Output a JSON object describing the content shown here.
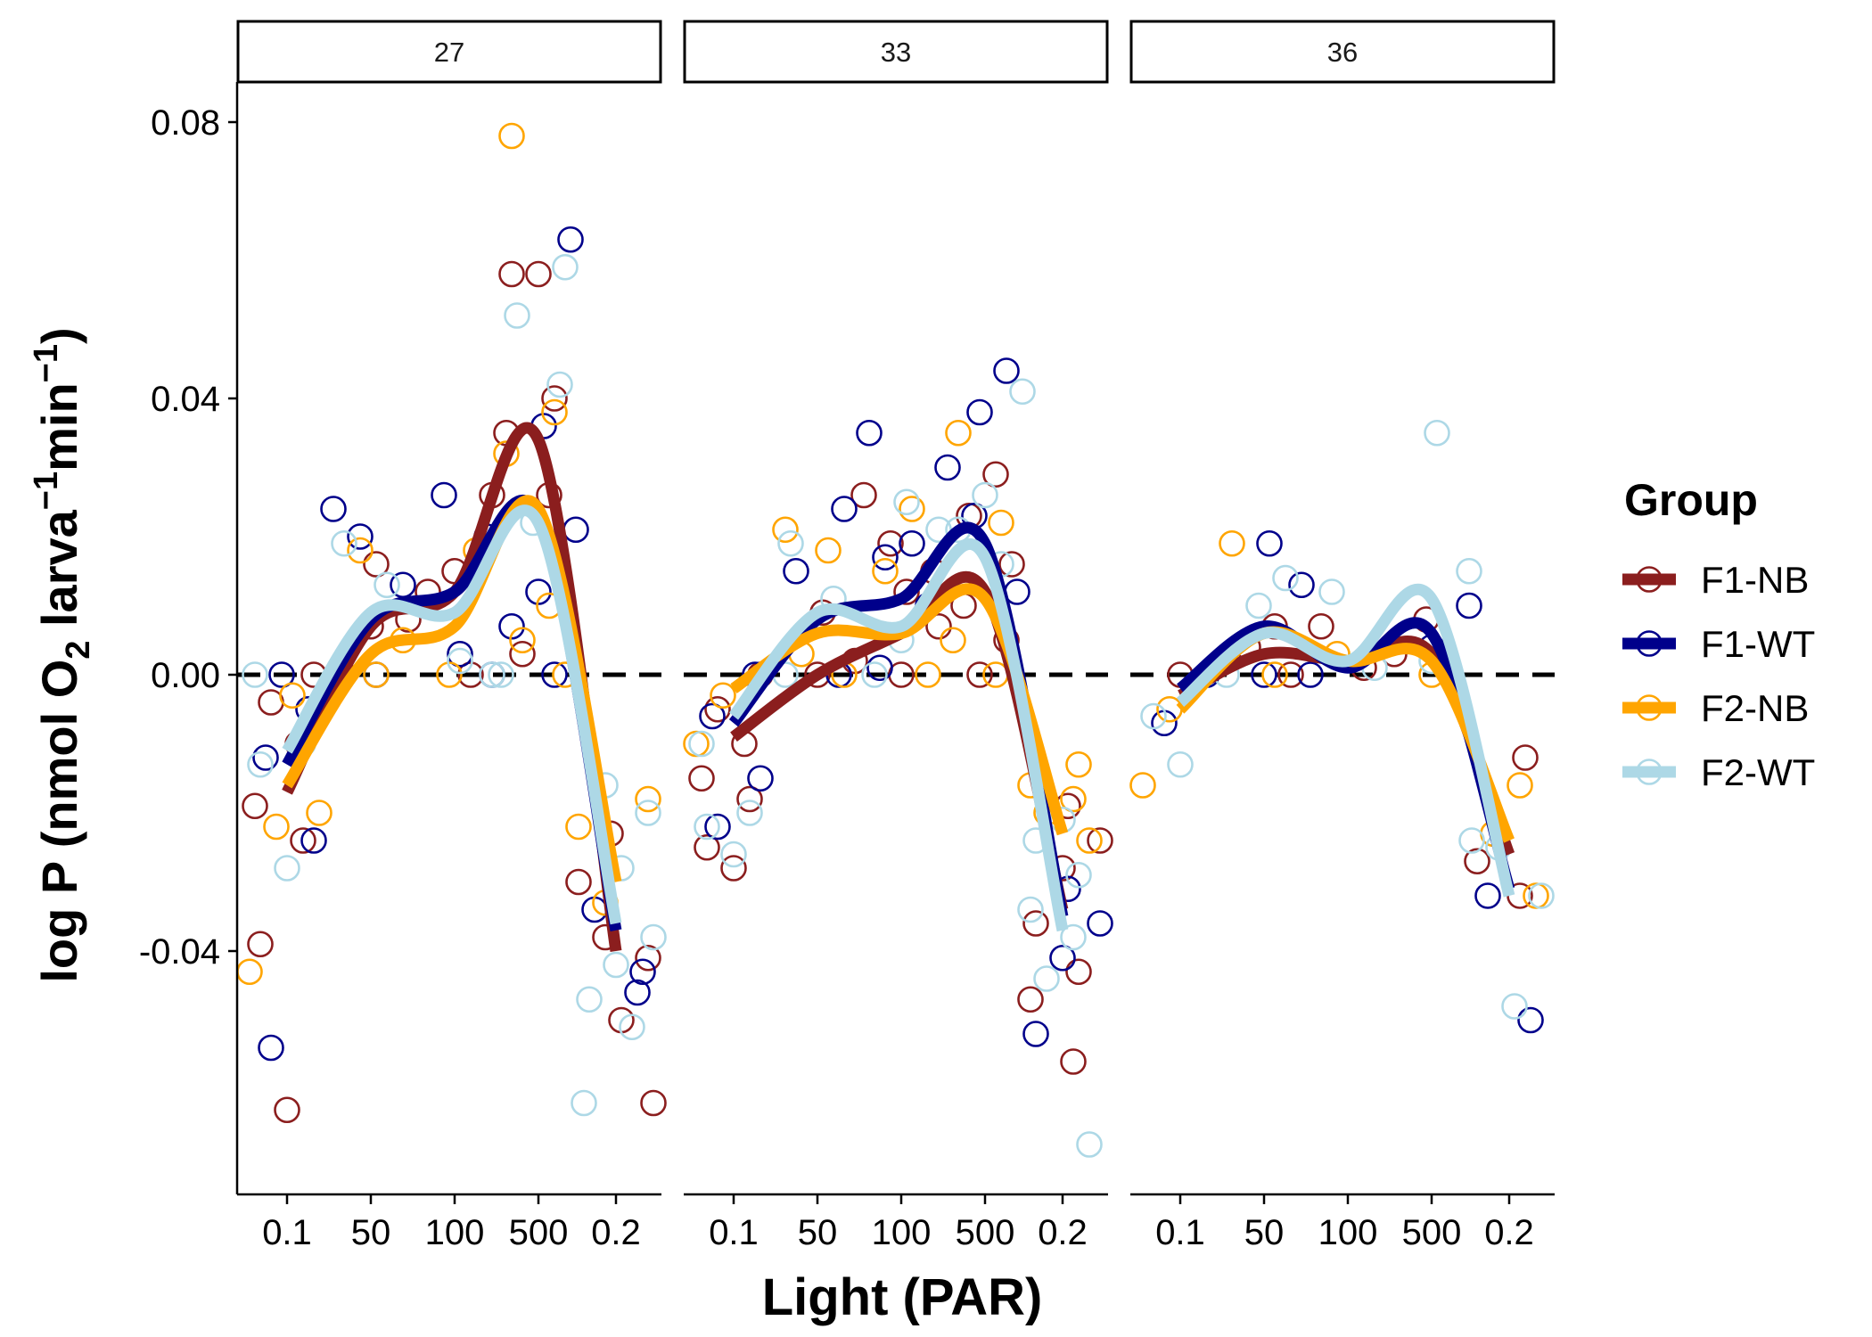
{
  "chart_data": {
    "type": "scatter",
    "title": "",
    "xlabel": "Light (PAR)",
    "ylabel": "log P (nmol O2 larva-1 min-1)",
    "ylabel_parts": {
      "a": "log P (nmol O",
      "sub": "2",
      "b": " larva",
      "sup1": "−1",
      "c": "min",
      "sup2": "−1",
      "d": ")"
    },
    "x_categories": [
      "0.1",
      "50",
      "100",
      "500",
      "0.2"
    ],
    "ylim": [
      -0.074,
      0.08
    ],
    "yticks": [
      -0.04,
      0.0,
      0.04,
      0.08
    ],
    "ytick_labels": [
      "-0.04",
      "0.00",
      "0.04",
      "0.08"
    ],
    "reference_line": 0,
    "facets": [
      "27",
      "33",
      "36"
    ],
    "legend": {
      "title": "Group",
      "position": "right",
      "entries": [
        {
          "name": "F1-NB",
          "color": "#8b1e1e"
        },
        {
          "name": "F1-WT",
          "color": "#00008b"
        },
        {
          "name": "F2-NB",
          "color": "#ffa500"
        },
        {
          "name": "F2-WT",
          "color": "#add8e6"
        }
      ]
    },
    "panels": [
      {
        "facet": "27",
        "smooth": {
          "F1-NB": [
            -0.017,
            0.007,
            0.012,
            0.034,
            -0.04
          ],
          "F1-WT": [
            -0.013,
            0.008,
            0.012,
            0.023,
            -0.037
          ],
          "F2-NB": [
            -0.016,
            0.003,
            0.007,
            0.024,
            -0.03
          ],
          "F2-WT": [
            -0.011,
            0.009,
            0.009,
            0.022,
            -0.036
          ]
        },
        "points": {
          "F1-NB": [
            [
              0,
              -0.063
            ],
            [
              0,
              -0.039
            ],
            [
              0,
              -0.024
            ],
            [
              0,
              -0.019
            ],
            [
              0,
              -0.01
            ],
            [
              0,
              -0.004
            ],
            [
              0,
              0.0
            ],
            [
              1,
              0.016
            ],
            [
              1,
              0.008
            ],
            [
              1,
              0.007
            ],
            [
              1,
              0.0
            ],
            [
              2,
              0.026
            ],
            [
              2,
              0.015
            ],
            [
              2,
              0.012
            ],
            [
              2,
              0.0
            ],
            [
              3,
              0.058
            ],
            [
              3,
              0.058
            ],
            [
              3,
              0.04
            ],
            [
              3,
              0.035
            ],
            [
              3,
              0.026
            ],
            [
              3,
              0.003
            ],
            [
              4,
              -0.023
            ],
            [
              4,
              -0.03
            ],
            [
              4,
              -0.038
            ],
            [
              4,
              -0.041
            ],
            [
              4,
              -0.05
            ],
            [
              4,
              -0.062
            ]
          ],
          "F1-WT": [
            [
              0,
              -0.054
            ],
            [
              0,
              -0.024
            ],
            [
              0,
              -0.012
            ],
            [
              0,
              -0.005
            ],
            [
              0,
              0.0
            ],
            [
              1,
              0.024
            ],
            [
              1,
              0.02
            ],
            [
              1,
              0.013
            ],
            [
              1,
              0.0
            ],
            [
              2,
              0.026
            ],
            [
              2,
              0.02
            ],
            [
              2,
              0.003
            ],
            [
              2,
              0.0
            ],
            [
              3,
              0.063
            ],
            [
              3,
              0.036
            ],
            [
              3,
              0.021
            ],
            [
              3,
              0.012
            ],
            [
              3,
              0.007
            ],
            [
              3,
              0.0
            ],
            [
              4,
              -0.043
            ],
            [
              4,
              -0.034
            ],
            [
              4,
              -0.046
            ]
          ],
          "F2-NB": [
            [
              0,
              -0.043
            ],
            [
              0,
              -0.022
            ],
            [
              0,
              -0.02
            ],
            [
              0,
              -0.003
            ],
            [
              1,
              0.018
            ],
            [
              1,
              0.005
            ],
            [
              1,
              0.0
            ],
            [
              2,
              0.018
            ],
            [
              2,
              0.0
            ],
            [
              3,
              0.078
            ],
            [
              3,
              0.038
            ],
            [
              3,
              0.032
            ],
            [
              3,
              0.01
            ],
            [
              3,
              0.005
            ],
            [
              3,
              0.0
            ],
            [
              4,
              -0.022
            ],
            [
              4,
              -0.033
            ],
            [
              4,
              -0.018
            ]
          ],
          "F2-WT": [
            [
              0,
              -0.028
            ],
            [
              0,
              -0.013
            ],
            [
              0,
              -0.01
            ],
            [
              0,
              0.0
            ],
            [
              1,
              0.019
            ],
            [
              1,
              0.013
            ],
            [
              1,
              0.0
            ],
            [
              2,
              0.002
            ],
            [
              2,
              0.0
            ],
            [
              3,
              0.059
            ],
            [
              3,
              0.052
            ],
            [
              3,
              0.042
            ],
            [
              3,
              0.022
            ],
            [
              3,
              0.0
            ],
            [
              4,
              -0.016
            ],
            [
              4,
              -0.02
            ],
            [
              4,
              -0.028
            ],
            [
              4,
              -0.038
            ],
            [
              4,
              -0.042
            ],
            [
              4,
              -0.047
            ],
            [
              4,
              -0.051
            ],
            [
              4,
              -0.062
            ]
          ]
        }
      },
      {
        "facet": "33",
        "smooth": {
          "F1-NB": [
            -0.009,
            0.0,
            0.006,
            0.012,
            -0.034
          ],
          "F1-WT": [
            -0.007,
            0.008,
            0.011,
            0.019,
            -0.035
          ],
          "F2-NB": [
            -0.002,
            0.006,
            0.006,
            0.011,
            -0.023
          ],
          "F2-WT": [
            -0.006,
            0.009,
            0.007,
            0.017,
            -0.037
          ]
        },
        "points": {
          "F1-NB": [
            [
              0,
              -0.028
            ],
            [
              0,
              -0.025
            ],
            [
              0,
              -0.018
            ],
            [
              0,
              -0.015
            ],
            [
              0,
              -0.01
            ],
            [
              0,
              -0.005
            ],
            [
              0,
              0.0
            ],
            [
              1,
              0.009
            ],
            [
              1,
              0.002
            ],
            [
              1,
              0.0
            ],
            [
              2,
              0.026
            ],
            [
              2,
              0.019
            ],
            [
              2,
              0.015
            ],
            [
              2,
              0.012
            ],
            [
              2,
              0.007
            ],
            [
              2,
              0.0
            ],
            [
              3,
              0.029
            ],
            [
              3,
              0.023
            ],
            [
              3,
              0.016
            ],
            [
              3,
              0.01
            ],
            [
              3,
              0.005
            ],
            [
              3,
              0.0
            ],
            [
              4,
              -0.019
            ],
            [
              4,
              -0.024
            ],
            [
              4,
              -0.028
            ],
            [
              4,
              -0.036
            ],
            [
              4,
              -0.043
            ],
            [
              4,
              -0.047
            ],
            [
              4,
              -0.056
            ]
          ],
          "F1-WT": [
            [
              0,
              -0.022
            ],
            [
              0,
              -0.015
            ],
            [
              0,
              -0.006
            ],
            [
              0,
              0.0
            ],
            [
              1,
              0.024
            ],
            [
              1,
              0.015
            ],
            [
              1,
              0.0
            ],
            [
              2,
              0.035
            ],
            [
              2,
              0.019
            ],
            [
              2,
              0.017
            ],
            [
              2,
              0.01
            ],
            [
              2,
              0.001
            ],
            [
              3,
              0.044
            ],
            [
              3,
              0.038
            ],
            [
              3,
              0.03
            ],
            [
              3,
              0.023
            ],
            [
              3,
              0.012
            ],
            [
              4,
              -0.031
            ],
            [
              4,
              -0.036
            ],
            [
              4,
              -0.041
            ],
            [
              4,
              -0.052
            ]
          ],
          "F2-NB": [
            [
              0,
              -0.01
            ],
            [
              0,
              -0.003
            ],
            [
              1,
              0.021
            ],
            [
              1,
              0.018
            ],
            [
              1,
              0.003
            ],
            [
              1,
              0.0
            ],
            [
              2,
              0.024
            ],
            [
              2,
              0.015
            ],
            [
              2,
              0.0
            ],
            [
              3,
              0.035
            ],
            [
              3,
              0.022
            ],
            [
              3,
              0.005
            ],
            [
              3,
              0.0
            ],
            [
              4,
              -0.013
            ],
            [
              4,
              -0.016
            ],
            [
              4,
              -0.018
            ],
            [
              4,
              -0.02
            ],
            [
              4,
              -0.024
            ]
          ],
          "F2-WT": [
            [
              0,
              -0.026
            ],
            [
              0,
              -0.022
            ],
            [
              0,
              -0.02
            ],
            [
              0,
              -0.01
            ],
            [
              1,
              0.019
            ],
            [
              1,
              0.011
            ],
            [
              1,
              0.0
            ],
            [
              2,
              0.025
            ],
            [
              2,
              0.021
            ],
            [
              2,
              0.005
            ],
            [
              2,
              0.0
            ],
            [
              3,
              0.041
            ],
            [
              3,
              0.026
            ],
            [
              3,
              0.021
            ],
            [
              3,
              0.016
            ],
            [
              4,
              -0.021
            ],
            [
              4,
              -0.024
            ],
            [
              4,
              -0.029
            ],
            [
              4,
              -0.034
            ],
            [
              4,
              -0.038
            ],
            [
              4,
              -0.044
            ],
            [
              4,
              -0.068
            ]
          ]
        }
      },
      {
        "facet": "36",
        "smooth": {
          "F1-NB": [
            -0.003,
            0.003,
            0.002,
            0.003,
            -0.026
          ],
          "F1-WT": [
            -0.002,
            0.007,
            0.001,
            0.006,
            -0.031
          ],
          "F2-NB": [
            -0.005,
            0.006,
            0.002,
            0.002,
            -0.024
          ],
          "F2-WT": [
            -0.004,
            0.006,
            0.002,
            0.011,
            -0.032
          ]
        },
        "points": {
          "F1-NB": [
            [
              0,
              0.0
            ],
            [
              1,
              0.007
            ],
            [
              1,
              0.004
            ],
            [
              1,
              0.0
            ],
            [
              2,
              0.007
            ],
            [
              2,
              0.001
            ],
            [
              3,
              0.008
            ],
            [
              3,
              0.003
            ],
            [
              4,
              -0.012
            ],
            [
              4,
              -0.027
            ],
            [
              4,
              -0.032
            ]
          ],
          "F1-WT": [
            [
              0,
              -0.007
            ],
            [
              0,
              0.0
            ],
            [
              1,
              0.019
            ],
            [
              1,
              0.013
            ],
            [
              1,
              0.0
            ],
            [
              2,
              0.0
            ],
            [
              3,
              0.01
            ],
            [
              3,
              0.004
            ],
            [
              4,
              -0.032
            ],
            [
              4,
              -0.05
            ]
          ],
          "F2-NB": [
            [
              0,
              -0.016
            ],
            [
              0,
              -0.005
            ],
            [
              1,
              0.019
            ],
            [
              1,
              0.0
            ],
            [
              2,
              0.003
            ],
            [
              3,
              0.0
            ],
            [
              4,
              -0.016
            ],
            [
              4,
              -0.023
            ],
            [
              4,
              -0.032
            ]
          ],
          "F2-WT": [
            [
              0,
              -0.013
            ],
            [
              0,
              -0.006
            ],
            [
              1,
              0.014
            ],
            [
              1,
              0.01
            ],
            [
              1,
              0.0
            ],
            [
              2,
              0.012
            ],
            [
              2,
              0.001
            ],
            [
              3,
              0.035
            ],
            [
              3,
              0.015
            ],
            [
              3,
              0.002
            ],
            [
              4,
              -0.024
            ],
            [
              4,
              -0.025
            ],
            [
              4,
              -0.032
            ],
            [
              4,
              -0.048
            ]
          ]
        }
      }
    ]
  }
}
